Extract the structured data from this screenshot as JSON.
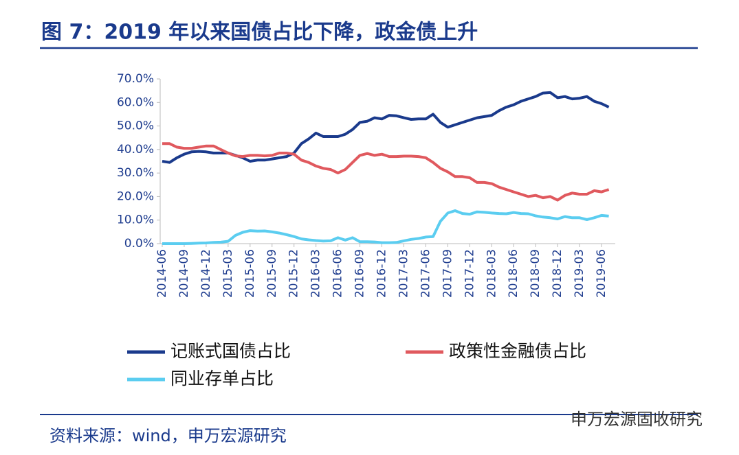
{
  "title": "图 7：2019 年以来国债占比下降，政金债上升",
  "source": "资料来源：wind，申万宏源研究",
  "watermark": "申万宏源固收研究",
  "chart_data": {
    "type": "line",
    "categories": [
      "2014-06",
      null,
      null,
      "2014-09",
      null,
      null,
      "2014-12",
      null,
      null,
      "2015-03",
      null,
      null,
      "2015-06",
      null,
      null,
      "2015-09",
      null,
      null,
      "2015-12",
      null,
      null,
      "2016-03",
      null,
      null,
      "2016-06",
      null,
      null,
      "2016-09",
      null,
      null,
      "2016-12",
      null,
      null,
      "2017-03",
      null,
      null,
      "2017-06",
      null,
      null,
      "2017-09",
      null,
      null,
      "2017-12",
      null,
      null,
      "2018-03",
      null,
      null,
      "2018-06",
      null,
      null,
      "2018-09",
      null,
      null,
      "2018-12",
      null,
      null,
      "2019-03",
      null,
      null,
      "2019-06",
      null
    ],
    "series": [
      {
        "name": "记账式国债占比",
        "color": "#1a3a8c",
        "values": [
          35,
          34.5,
          36.5,
          38,
          39,
          39.2,
          39,
          38.5,
          38.5,
          38.5,
          37.5,
          36.5,
          35,
          35.5,
          35.5,
          36,
          36.5,
          37,
          38.5,
          42.5,
          44.5,
          47,
          45.5,
          45.5,
          45.5,
          46.5,
          48.5,
          51.5,
          52,
          53.5,
          53,
          54.5,
          54.3,
          53.5,
          52.8,
          53,
          53,
          55,
          51.5,
          49.5,
          50.5,
          51.5,
          52.5,
          53.5,
          54,
          54.5,
          56.5,
          58,
          59,
          60.5,
          61.5,
          62.5,
          64,
          64.2,
          62,
          62.5,
          61.5,
          61.8,
          62.5,
          60.5,
          59.5,
          58
        ]
      },
      {
        "name": "政策性金融债占比",
        "color": "#e0595e",
        "values": [
          42.5,
          42.5,
          41,
          40.5,
          40.5,
          41,
          41.5,
          41.5,
          40,
          38.5,
          37.3,
          37,
          37.5,
          37.5,
          37.3,
          37.5,
          38.5,
          38.5,
          38,
          35.5,
          34.5,
          33,
          32,
          31.5,
          30,
          31.5,
          34.5,
          37.5,
          38.3,
          37.5,
          38,
          37,
          37,
          37.2,
          37.2,
          37,
          36.5,
          34.5,
          32,
          30.5,
          28.5,
          28.5,
          28,
          26,
          26,
          25.5,
          24,
          23,
          22,
          21,
          20,
          20.5,
          19.5,
          20,
          18.5,
          20.5,
          21.5,
          21,
          21,
          22.5,
          22,
          23
        ]
      },
      {
        "name": "同业存单占比",
        "color": "#5bcdf0",
        "values": [
          0,
          0,
          0,
          0,
          0.1,
          0.2,
          0.3,
          0.5,
          0.6,
          1,
          3.5,
          4.8,
          5.5,
          5.3,
          5.4,
          5,
          4.5,
          3.8,
          3,
          2,
          1.6,
          1.3,
          1.1,
          1.2,
          2.5,
          1.5,
          2.5,
          0.8,
          0.8,
          0.7,
          0.4,
          0.4,
          0.5,
          1.2,
          1.8,
          2.2,
          2.8,
          3,
          9.5,
          13,
          14,
          12.8,
          12.5,
          13.5,
          13.3,
          13,
          12.8,
          12.7,
          13.2,
          12.8,
          12.7,
          11.8,
          11.3,
          11,
          10.5,
          11.5,
          11,
          11,
          10.2,
          11,
          12,
          11.7
        ]
      }
    ],
    "ylim": [
      0,
      70
    ],
    "yticks": [
      {
        "value": 0,
        "label": "0.0%"
      },
      {
        "value": 10,
        "label": "10.0%"
      },
      {
        "value": 20,
        "label": "20.0%"
      },
      {
        "value": 30,
        "label": "30.0%"
      },
      {
        "value": 40,
        "label": "40.0%"
      },
      {
        "value": 50,
        "label": "50.0%"
      },
      {
        "value": 60,
        "label": "60.0%"
      },
      {
        "value": 70,
        "label": "70.0%"
      }
    ],
    "grid": false
  }
}
